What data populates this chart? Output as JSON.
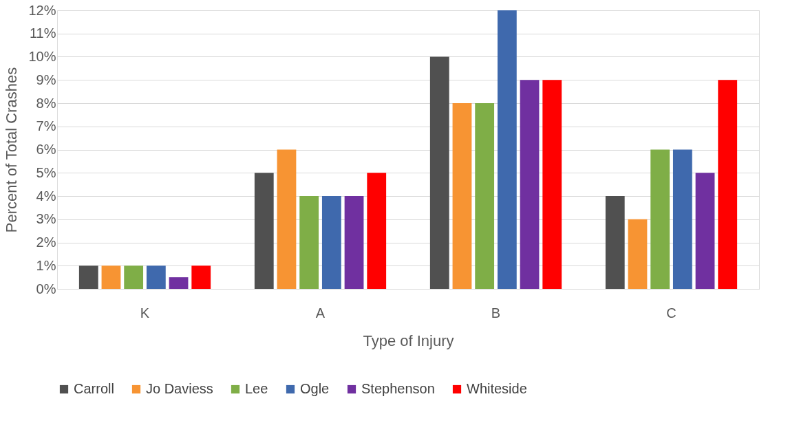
{
  "chart_data": {
    "type": "bar",
    "xlabel": "Type of Injury",
    "ylabel": "Percent of Total Crashes",
    "categories": [
      "K",
      "A",
      "B",
      "C"
    ],
    "series": [
      {
        "name": "Carroll",
        "color": "#505050",
        "values": [
          1,
          5,
          10,
          4
        ]
      },
      {
        "name": "Jo Daviess",
        "color": "#f79433",
        "values": [
          1,
          6,
          8,
          3
        ]
      },
      {
        "name": "Lee",
        "color": "#7fae47",
        "values": [
          1,
          4,
          8,
          6
        ]
      },
      {
        "name": "Ogle",
        "color": "#3f69ad",
        "values": [
          1,
          4,
          12,
          6
        ]
      },
      {
        "name": "Stephenson",
        "color": "#7030a0",
        "values": [
          0.5,
          4,
          9,
          5
        ]
      },
      {
        "name": "Whiteside",
        "color": "#ff0000",
        "values": [
          1,
          5,
          9,
          9
        ]
      }
    ],
    "ylim": [
      0,
      12
    ],
    "yticks": [
      {
        "value": 0,
        "label": "0%"
      },
      {
        "value": 1,
        "label": "1%"
      },
      {
        "value": 2,
        "label": "2%"
      },
      {
        "value": 3,
        "label": "3%"
      },
      {
        "value": 4,
        "label": "4%"
      },
      {
        "value": 5,
        "label": "5%"
      },
      {
        "value": 6,
        "label": "6%"
      },
      {
        "value": 7,
        "label": "7%"
      },
      {
        "value": 8,
        "label": "8%"
      },
      {
        "value": 9,
        "label": "9%"
      },
      {
        "value": 10,
        "label": "10%"
      },
      {
        "value": 11,
        "label": "11%"
      },
      {
        "value": 12,
        "label": "12%"
      }
    ],
    "grid": "y",
    "legend": "bottom"
  }
}
